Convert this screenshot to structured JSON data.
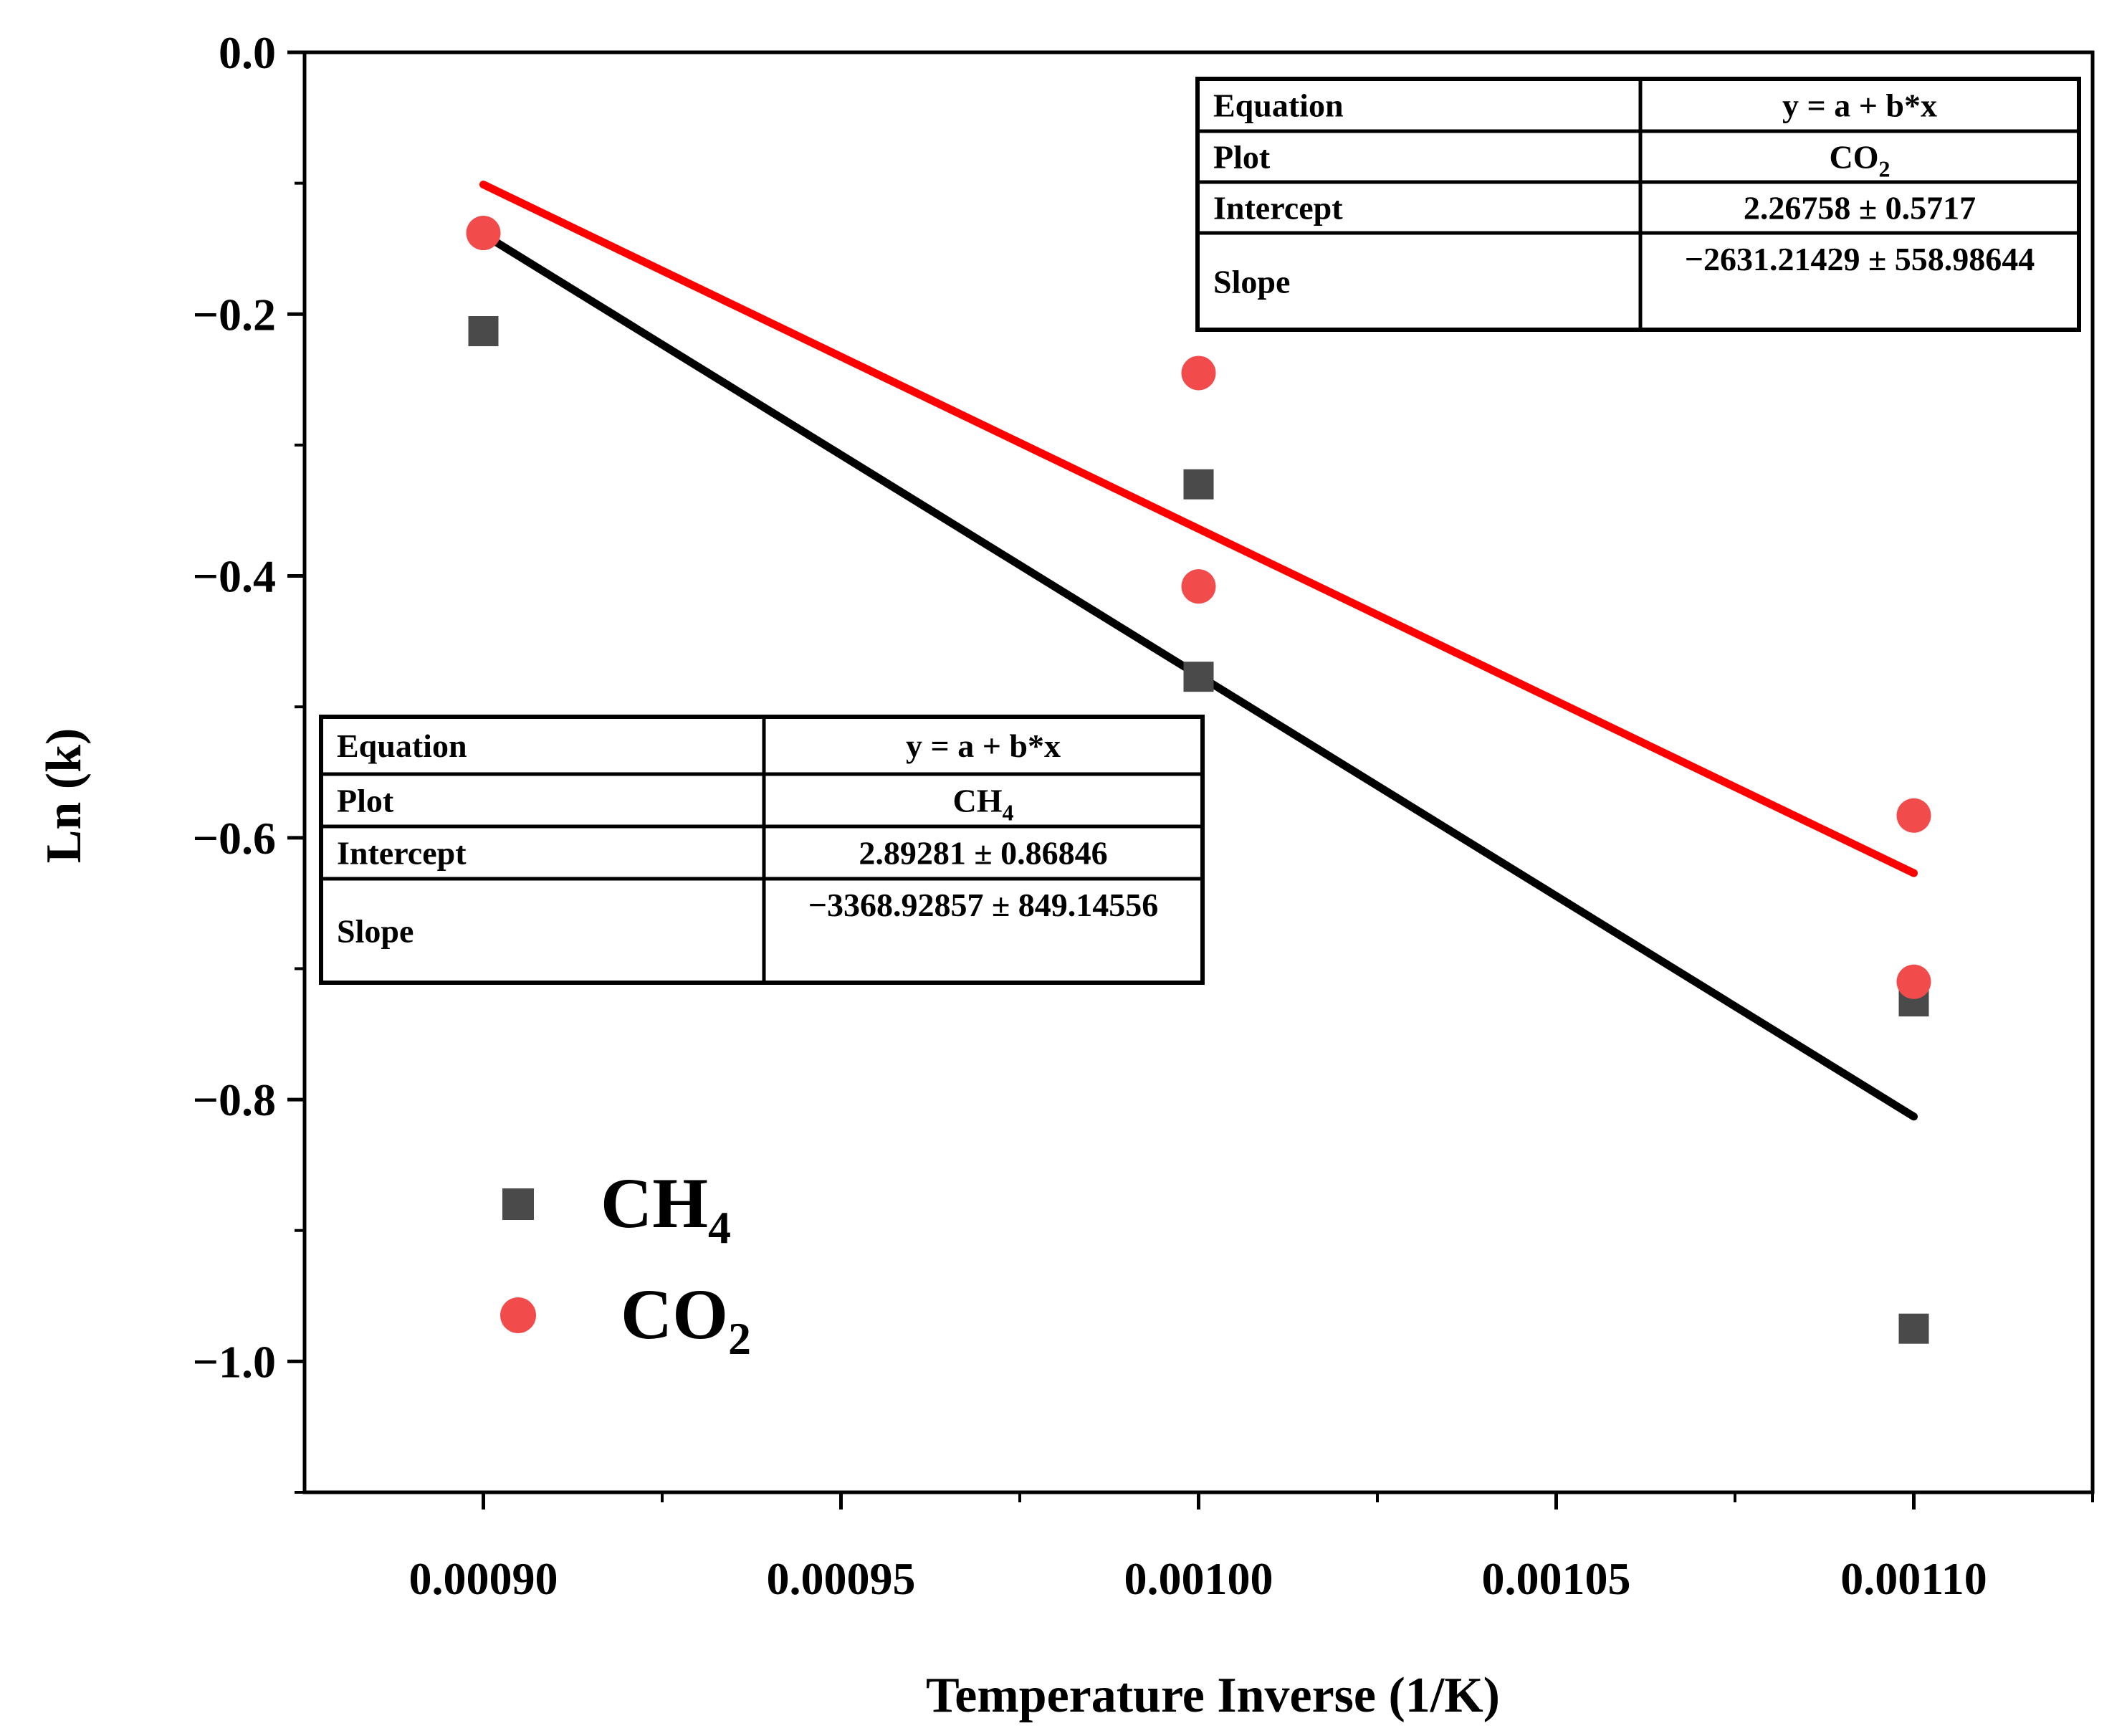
{
  "chart_data": {
    "type": "scatter",
    "title": "",
    "xlabel": "Temperature Inverse (1/K)",
    "ylabel": "Ln (k)",
    "xlim": [
      0.000875,
      0.001125
    ],
    "ylim": [
      -1.1,
      0.0
    ],
    "x_ticks": [
      0.0009,
      0.00095,
      0.001,
      0.00105,
      0.0011
    ],
    "x_tick_labels": [
      "0.00090",
      "0.00095",
      "0.00100",
      "0.00105",
      "0.00110"
    ],
    "y_ticks": [
      0.0,
      -0.2,
      -0.4,
      -0.6,
      -0.8,
      -1.0
    ],
    "y_tick_labels": [
      "0.0",
      "−0.2",
      "−0.4",
      "−0.6",
      "−0.8",
      "−1.0"
    ],
    "series": [
      {
        "name": "CH4",
        "label_main": "CH",
        "label_sub": "4",
        "marker": "square",
        "color": "#4a4a4a",
        "line_color": "#000000",
        "points": [
          {
            "x": 0.0009,
            "y": -0.213
          },
          {
            "x": 0.001,
            "y": -0.33
          },
          {
            "x": 0.001,
            "y": -0.477
          },
          {
            "x": 0.0011,
            "y": -0.725
          },
          {
            "x": 0.0011,
            "y": -0.975
          }
        ],
        "fit": {
          "x_start": 0.0009,
          "x_end": 0.0011,
          "y_start": -0.139,
          "y_end": -0.813
        }
      },
      {
        "name": "CO2",
        "label_main": "CO",
        "label_sub": "2",
        "marker": "circle",
        "color": "#f24b4b",
        "line_color": "#ff0000",
        "points": [
          {
            "x": 0.0009,
            "y": -0.138
          },
          {
            "x": 0.001,
            "y": -0.245
          },
          {
            "x": 0.001,
            "y": -0.408
          },
          {
            "x": 0.0011,
            "y": -0.583
          },
          {
            "x": 0.0011,
            "y": -0.71
          }
        ],
        "fit": {
          "x_start": 0.0009,
          "x_end": 0.0011,
          "y_start": -0.101,
          "y_end": -0.627
        }
      }
    ],
    "fit_tables": [
      {
        "series": "CO2",
        "rows": [
          {
            "label": "Equation",
            "value": "y = a + b*x"
          },
          {
            "label": "Plot",
            "value": "CO",
            "value_sub": "2"
          },
          {
            "label": "Intercept",
            "value": "2.26758 ± 0.5717"
          },
          {
            "label": "Slope",
            "value": "−2631.21429 ± 558.98644"
          }
        ]
      },
      {
        "series": "CH4",
        "rows": [
          {
            "label": "Equation",
            "value": "y = a + b*x"
          },
          {
            "label": "Plot",
            "value": "CH",
            "value_sub": "4"
          },
          {
            "label": "Intercept",
            "value": "2.89281 ± 0.86846"
          },
          {
            "label": "Slope",
            "value": "−3368.92857 ± 849.14556"
          }
        ]
      }
    ],
    "legend_position": "bottom-left"
  }
}
